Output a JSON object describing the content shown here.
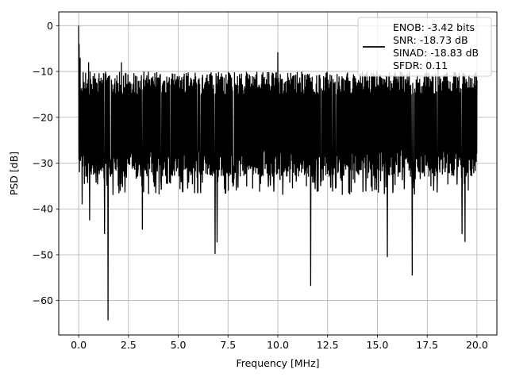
{
  "chart_data": {
    "type": "line",
    "xlabel": "Frequency [MHz]",
    "ylabel": "PSD [dB]",
    "xlim": [
      -1.0,
      21.0
    ],
    "ylim": [
      -67.5,
      3.0
    ],
    "xticks": [
      0.0,
      2.5,
      5.0,
      7.5,
      10.0,
      12.5,
      15.0,
      17.5,
      20.0
    ],
    "xtick_labels": [
      "0.0",
      "2.5",
      "5.0",
      "7.5",
      "10.0",
      "12.5",
      "15.0",
      "17.5",
      "20.0"
    ],
    "yticks": [
      0,
      -10,
      -20,
      -30,
      -40,
      -50,
      -60
    ],
    "ytick_labels": [
      "0",
      "−10",
      "−20",
      "−30",
      "−40",
      "−50",
      "−60"
    ],
    "grid": true,
    "legend_position": "top-right",
    "series": [
      {
        "name": "ENOB: -3.42 bits\nSNR: -18.73 dB\nSINAD: -18.83 dB\nSFDR: 0.11",
        "color": "#000000",
        "style": "noise band",
        "x_range": [
          0.0,
          20.0
        ],
        "band_upper_envelope_db": -12,
        "band_lower_envelope_db": -31,
        "band_center_db": -21.5,
        "peaks": [
          {
            "x": 0.0,
            "y": 0.0
          },
          {
            "x": 0.03,
            "y": -4.0
          },
          {
            "x": 0.08,
            "y": -7.0
          },
          {
            "x": 0.5,
            "y": -8.0
          },
          {
            "x": 2.15,
            "y": -8.0
          },
          {
            "x": 10.0,
            "y": -5.8
          },
          {
            "x": 18.05,
            "y": -9.0
          }
        ],
        "dips": [
          {
            "x": 0.18,
            "y": -39.0
          },
          {
            "x": 0.55,
            "y": -42.5
          },
          {
            "x": 1.3,
            "y": -45.5
          },
          {
            "x": 1.48,
            "y": -64.3
          },
          {
            "x": 3.2,
            "y": -44.5
          },
          {
            "x": 6.85,
            "y": -49.8
          },
          {
            "x": 6.95,
            "y": -47.3
          },
          {
            "x": 11.65,
            "y": -56.8
          },
          {
            "x": 15.5,
            "y": -50.5
          },
          {
            "x": 16.75,
            "y": -54.5
          },
          {
            "x": 19.25,
            "y": -45.5
          },
          {
            "x": 19.4,
            "y": -47.2
          }
        ]
      }
    ]
  }
}
